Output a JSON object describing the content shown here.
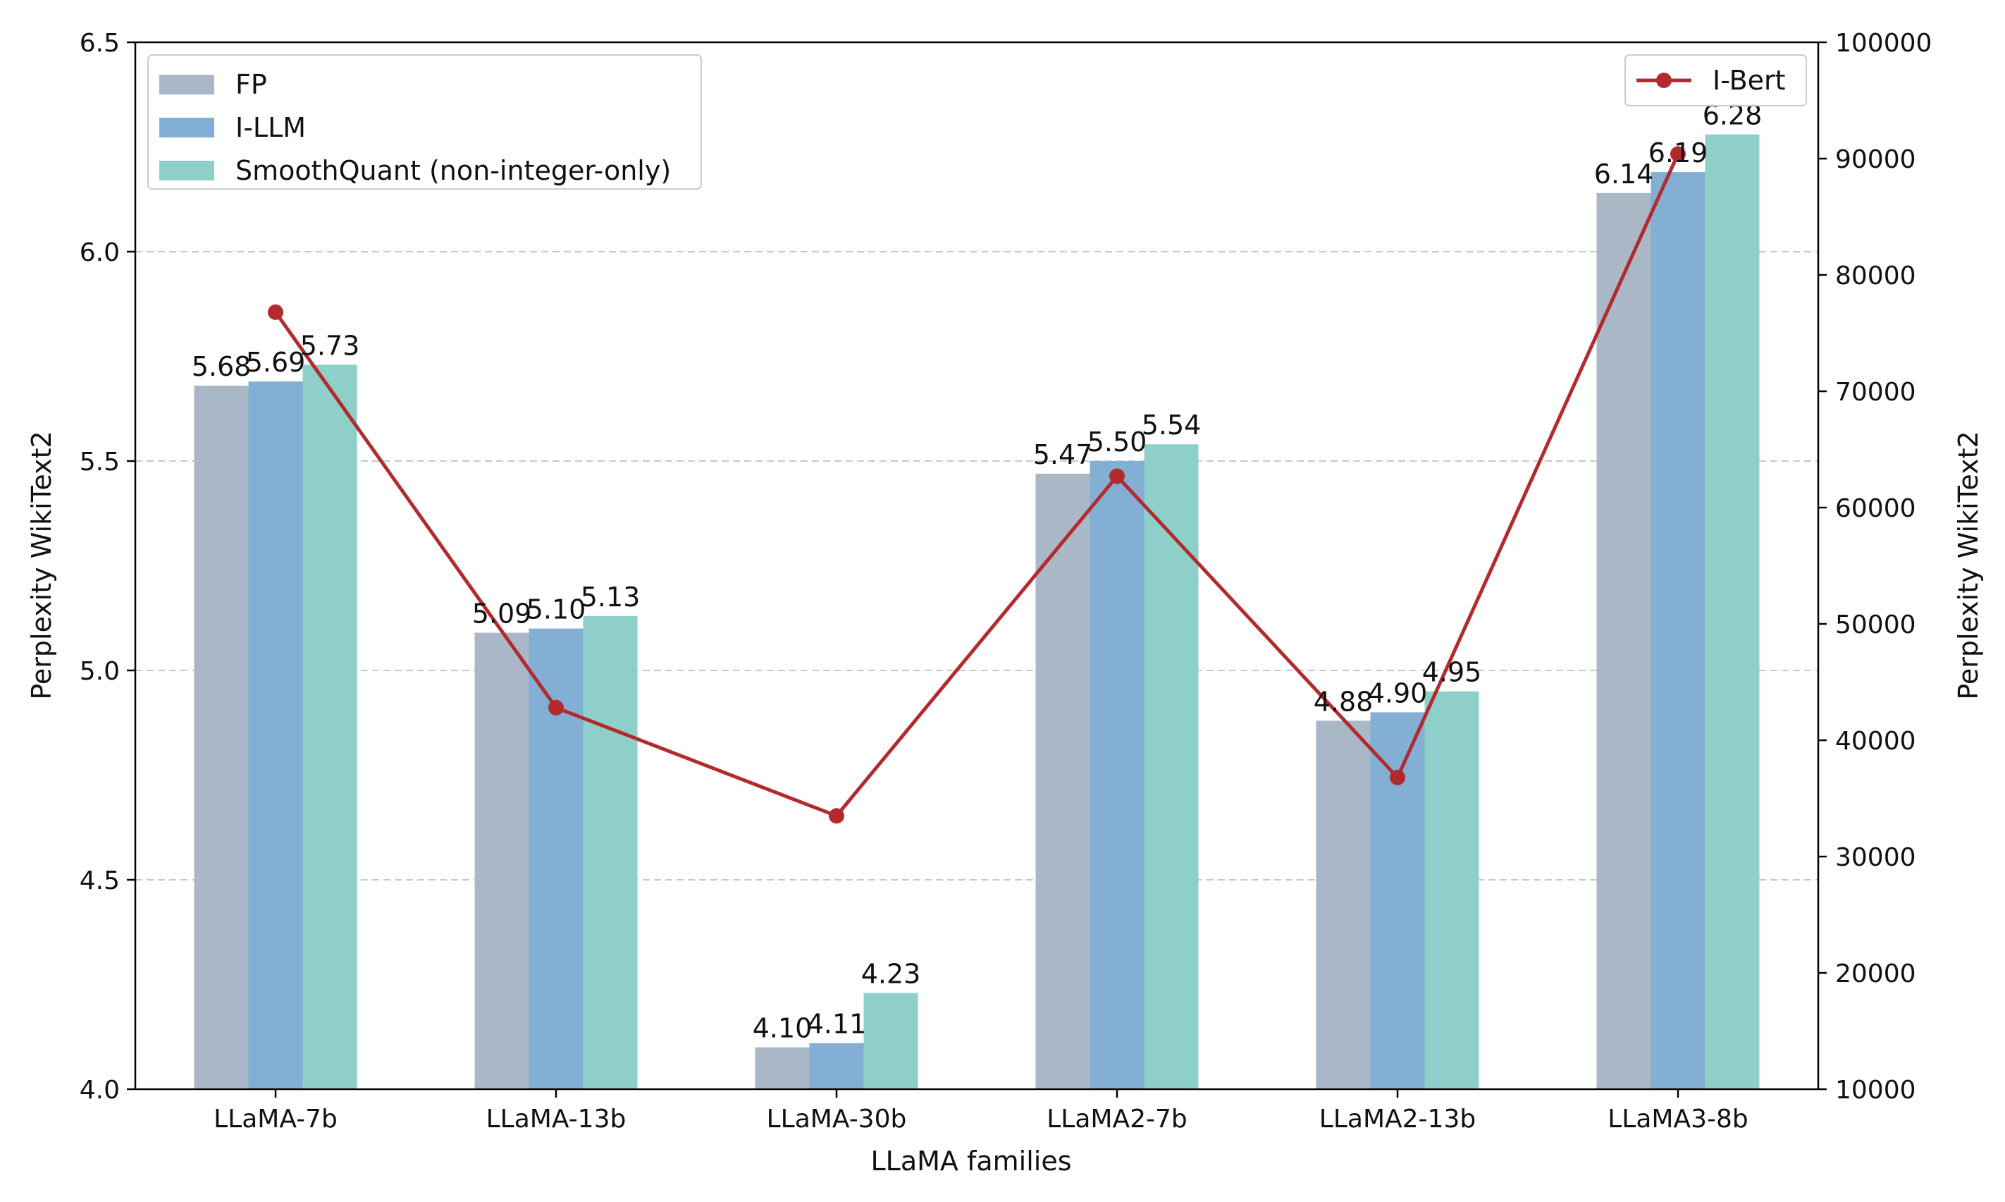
{
  "chart_data": {
    "type": "bar",
    "title": "",
    "xlabel": "LLaMA families",
    "ylabel": "Perplexity WikiText2",
    "y2label": "Perplexity WikiText2",
    "categories": [
      "LLaMA-7b",
      "LLaMA-13b",
      "LLaMA-30b",
      "LLaMA2-7b",
      "LLaMA2-13b",
      "LLaMA3-8b"
    ],
    "ylim": [
      4.0,
      6.5
    ],
    "y_ticks": [
      "4.0",
      "4.5",
      "5.0",
      "5.5",
      "6.0",
      "6.5"
    ],
    "y2lim": [
      10000,
      100000
    ],
    "y2_ticks": [
      "10000",
      "20000",
      "30000",
      "40000",
      "50000",
      "60000",
      "70000",
      "80000",
      "90000",
      "100000"
    ],
    "grid": "horizontal dashed",
    "series": [
      {
        "name": "FP",
        "kind": "bar",
        "axis": "left",
        "color": "#a9b7c6",
        "values": [
          5.68,
          5.09,
          4.1,
          5.47,
          4.88,
          6.14
        ],
        "labels": [
          "5.68",
          "5.09",
          "4.10",
          "5.47",
          "4.88",
          "6.14"
        ]
      },
      {
        "name": "I-LLM",
        "kind": "bar",
        "axis": "left",
        "color": "#82afd3",
        "values": [
          5.69,
          5.1,
          4.11,
          5.5,
          4.9,
          6.19
        ],
        "labels": [
          "5.69",
          "5.10",
          "4.11",
          "5.50",
          "4.90",
          "6.19"
        ]
      },
      {
        "name": "SmoothQuant (non-integer-only)",
        "kind": "bar",
        "axis": "left",
        "color": "#8ecfc9",
        "values": [
          5.73,
          5.13,
          4.23,
          5.54,
          4.95,
          6.28
        ],
        "labels": [
          "5.73",
          "5.13",
          "4.23",
          "5.54",
          "4.95",
          "6.28"
        ]
      },
      {
        "name": "I-Bert",
        "kind": "line",
        "axis": "right",
        "color": "#b22a2e",
        "values": [
          76800,
          42800,
          33500,
          62700,
          36800,
          90400
        ]
      }
    ],
    "legend_left_position": "top-left",
    "legend_right_position": "top-right"
  }
}
